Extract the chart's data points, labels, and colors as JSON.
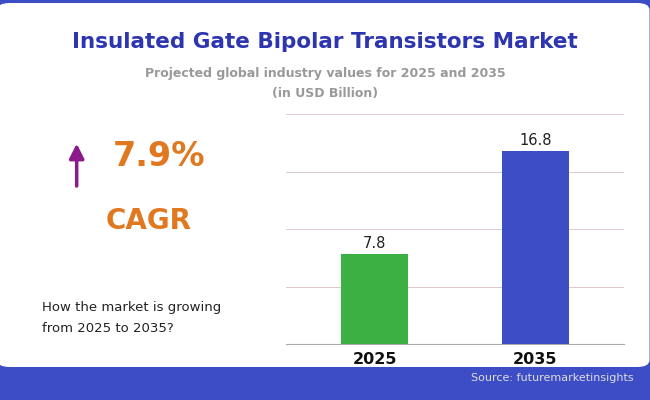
{
  "title": "Insulated Gate Bipolar Transistors Market",
  "subtitle_line1": "Projected global industry values for 2025 and 2035",
  "subtitle_line2": "(in USD Billion)",
  "categories": [
    "2025",
    "2035"
  ],
  "values": [
    7.8,
    16.8
  ],
  "bar_colors": [
    "#3cb043",
    "#3d4dc5"
  ],
  "bar_labels": [
    "7.8",
    "16.8"
  ],
  "cagr_text": "7.9%",
  "cagr_label": "CAGR",
  "arrow_color": "#8b1a8b",
  "cagr_color": "#e07820",
  "box_border_color": "#3d4dc5",
  "description_text": "How the market is growing\nfrom 2025 to 2035?",
  "source_text": "Source: futuremarketinsights",
  "background_outer": "#3d4dc5",
  "background_inner": "#ffffff",
  "title_color": "#2d35b0",
  "subtitle_color": "#999999",
  "ylim": [
    0,
    20
  ],
  "figsize": [
    6.5,
    4.0
  ],
  "dpi": 100
}
